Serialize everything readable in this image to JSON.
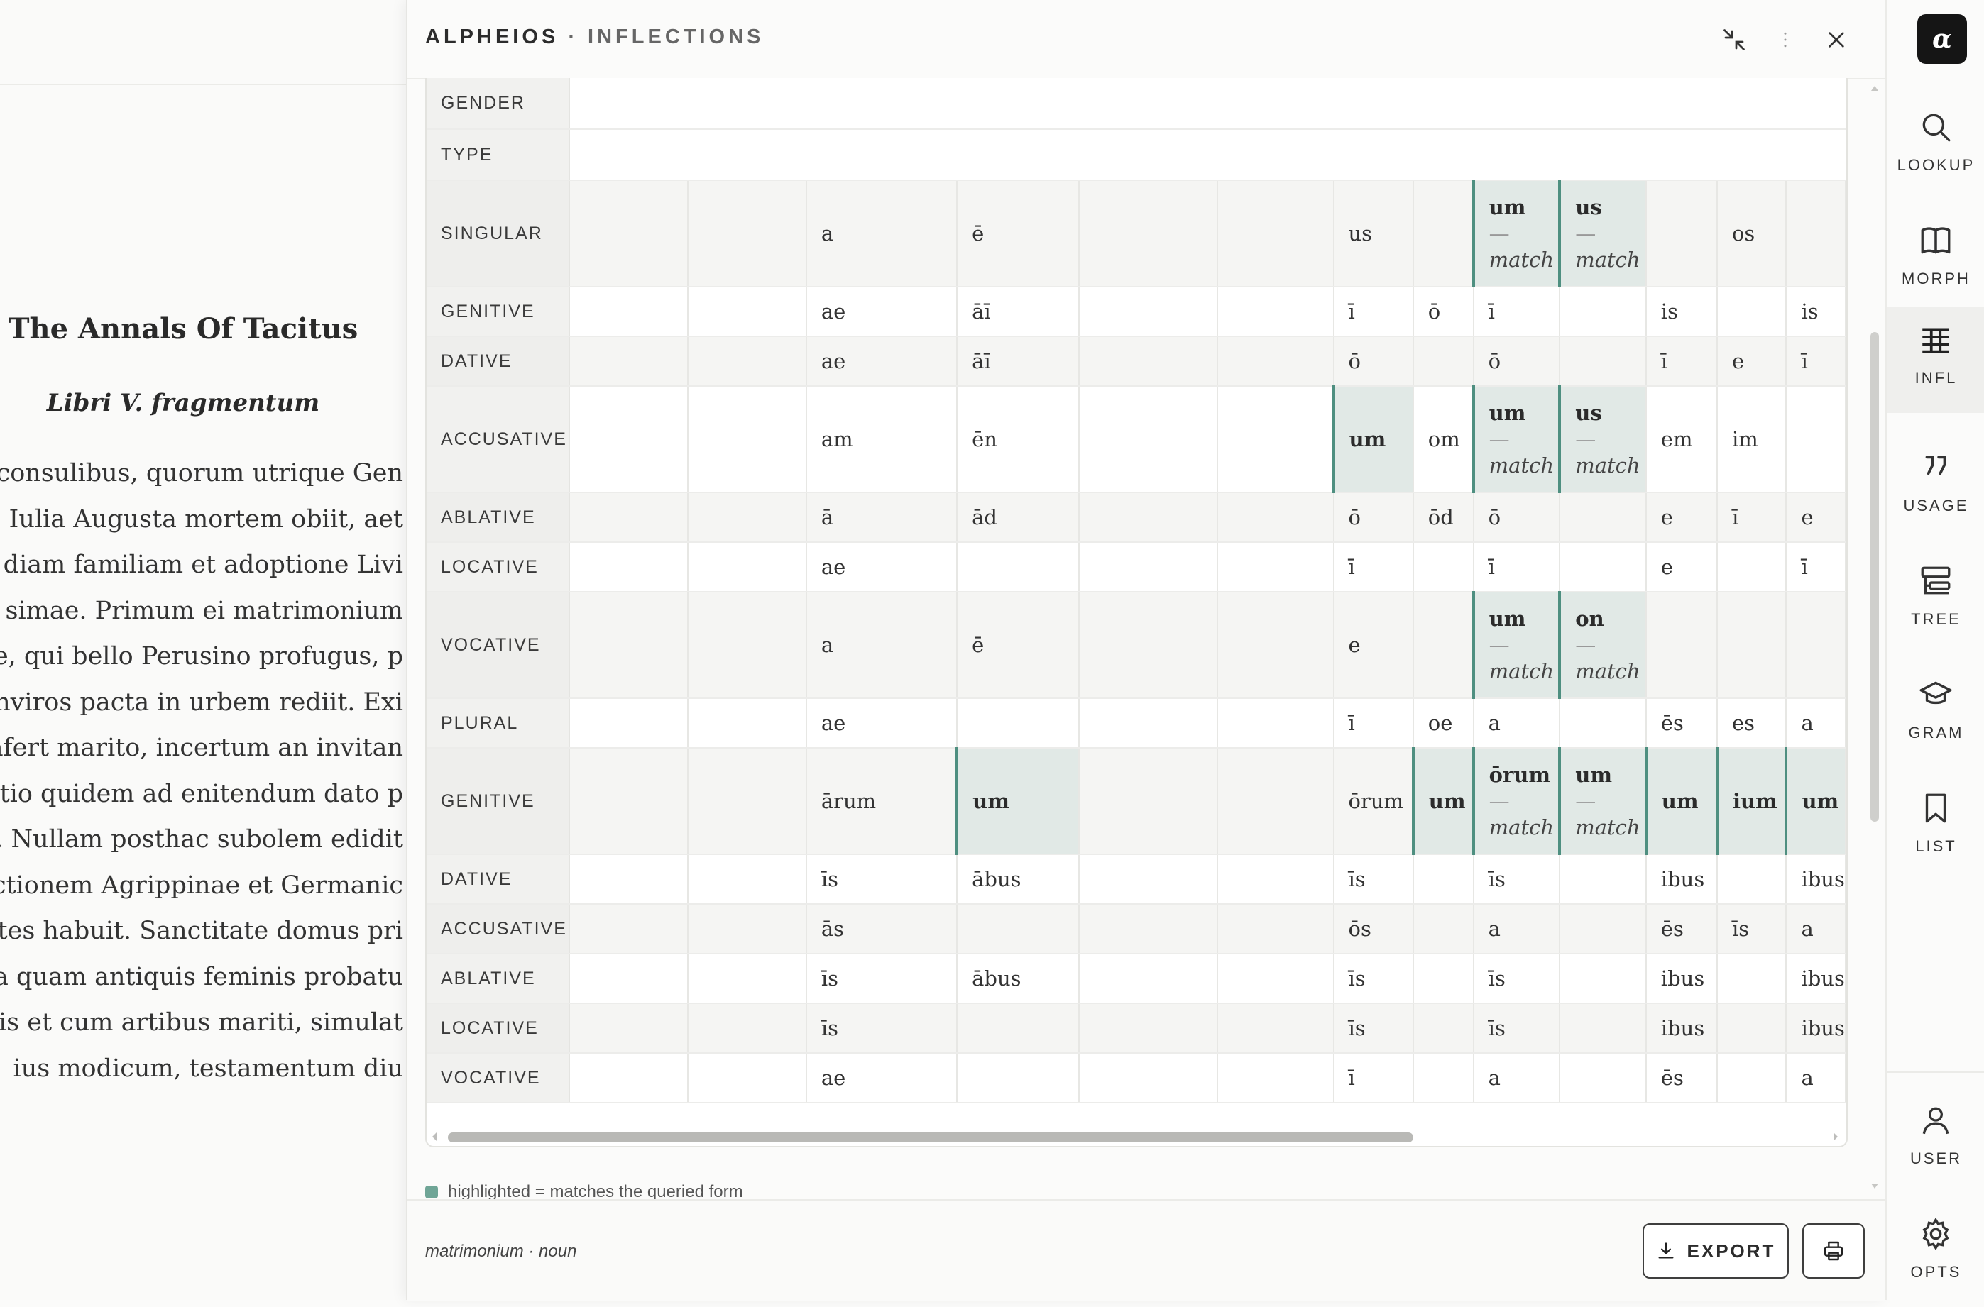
{
  "reader": {
    "title": "The Annals Of Tacitus",
    "subtitle": "Libri V. fragmentum",
    "lines": [
      "consulibus, quorum utrique Gen",
      ", Iulia Augusta mortem obiit, aet",
      "diam familiam et adoptione Livi",
      "simae. Primum ei matrimonium",
      "e, qui bello Perusino profugus, p",
      "nviros pacta in urbem rediit. Exi",
      "afert marito, incertum an invitan",
      "tio quidem ad enitendum dato p",
      ". Nullam posthac subolem edidit",
      "ctionem Agrippinae et Germanic",
      "otes habuit. Sanctitate domus pri",
      "a quam antiquis feminis probatu",
      "is et cum artibus mariti, simulat",
      "ius modicum, testamentum diu"
    ]
  },
  "panel": {
    "title_app": "ALPHEIOS",
    "title_sep": "·",
    "title_section": "INFLECTIONS",
    "buttons": {
      "collapse": "collapse-icon",
      "more": "more-vertical-icon",
      "close": "close-icon"
    }
  },
  "table": {
    "header_rows": [
      "GENDER",
      "TYPE"
    ],
    "match_label": "match",
    "rows": [
      {
        "label": "SINGULAR",
        "tall": true,
        "cells": [
          "",
          "",
          "a",
          "ē",
          "",
          "",
          "us",
          "",
          {
            "v": "um",
            "match": true
          },
          {
            "v": "us",
            "match": true
          },
          "",
          "os",
          ""
        ]
      },
      {
        "label": "GENITIVE",
        "cells": [
          "",
          "",
          "ae",
          "āī",
          "",
          "",
          "ī",
          "ō",
          "ī",
          "",
          "is",
          "",
          "is"
        ]
      },
      {
        "label": "DATIVE",
        "cells": [
          "",
          "",
          "ae",
          "āī",
          "",
          "",
          "ō",
          "",
          "ō",
          "",
          "ī",
          "e",
          "ī"
        ]
      },
      {
        "label": "ACCUSATIVE",
        "tall": true,
        "cells": [
          "",
          "",
          "am",
          "ēn",
          "",
          "",
          {
            "v": "um",
            "hl": true
          },
          "om",
          {
            "v": "um",
            "match": true
          },
          {
            "v": "us",
            "match": true
          },
          "em",
          "im",
          ""
        ]
      },
      {
        "label": "ABLATIVE",
        "cells": [
          "",
          "",
          "ā",
          "ād",
          "",
          "",
          "ō",
          "ōd",
          "ō",
          "",
          "e",
          "ī",
          "e"
        ]
      },
      {
        "label": "LOCATIVE",
        "cells": [
          "",
          "",
          "ae",
          "",
          "",
          "",
          "ī",
          "",
          "ī",
          "",
          "e",
          "",
          "ī"
        ]
      },
      {
        "label": "VOCATIVE",
        "tall": true,
        "cells": [
          "",
          "",
          "a",
          "ē",
          "",
          "",
          "e",
          "",
          {
            "v": "um",
            "match": true
          },
          {
            "v": "on",
            "match": true
          },
          "",
          "",
          ""
        ]
      },
      {
        "label": "PLURAL",
        "cells": [
          "",
          "",
          "ae",
          "",
          "",
          "",
          "ī",
          "oe",
          "a",
          "",
          "ēs",
          "es",
          "a"
        ]
      },
      {
        "label": "GENITIVE",
        "tall": true,
        "cells": [
          "",
          "",
          "ārum",
          {
            "v": "um",
            "hl": true
          },
          "",
          "",
          "ōrum",
          {
            "v": "um",
            "hl": true
          },
          {
            "v": "ōrum",
            "match": true
          },
          {
            "v": "um",
            "match": true
          },
          {
            "v": "um",
            "hl": true
          },
          {
            "v": "ium",
            "hl": true
          },
          {
            "v": "um",
            "hl": true
          }
        ]
      },
      {
        "label": "DATIVE",
        "cells": [
          "",
          "",
          "īs",
          "ābus",
          "",
          "",
          "īs",
          "",
          "īs",
          "",
          "ibus",
          "",
          "ibus"
        ]
      },
      {
        "label": "ACCUSATIVE",
        "cells": [
          "",
          "",
          "ās",
          "",
          "",
          "",
          "ōs",
          "",
          "a",
          "",
          "ēs",
          "īs",
          "a"
        ]
      },
      {
        "label": "ABLATIVE",
        "cells": [
          "",
          "",
          "īs",
          "ābus",
          "",
          "",
          "īs",
          "",
          "īs",
          "",
          "ibus",
          "",
          "ibus"
        ]
      },
      {
        "label": "LOCATIVE",
        "cells": [
          "",
          "",
          "īs",
          "",
          "",
          "",
          "īs",
          "",
          "īs",
          "",
          "ibus",
          "",
          "ibus"
        ]
      },
      {
        "label": "VOCATIVE",
        "cells": [
          "",
          "",
          "ae",
          "",
          "",
          "",
          "ī",
          "",
          "a",
          "",
          "ēs",
          "",
          "a"
        ]
      }
    ]
  },
  "legend": {
    "text": "highlighted = matches the queried form",
    "color": "#6fa596"
  },
  "footer": {
    "lemma": "matrimonium · noun",
    "export_label": "EXPORT",
    "export_icon": "download-icon",
    "print_icon": "printer-icon"
  },
  "rail": {
    "logo": "α",
    "items": [
      {
        "label": "LOOKUP",
        "icon": "search-icon"
      },
      {
        "label": "MORPH",
        "icon": "book-icon"
      },
      {
        "label": "INFL",
        "icon": "table-icon",
        "active": true
      },
      {
        "label": "USAGE",
        "icon": "quote-icon"
      },
      {
        "label": "TREE",
        "icon": "tree-icon"
      },
      {
        "label": "GRAM",
        "icon": "graduation-cap-icon"
      },
      {
        "label": "LIST",
        "icon": "bookmark-icon"
      }
    ],
    "bottom": [
      {
        "label": "USER",
        "icon": "user-icon"
      },
      {
        "label": "OPTS",
        "icon": "gear-icon"
      }
    ]
  },
  "colors": {
    "highlight_bg": "#e1e9e6",
    "highlight_border": "#4e8f80"
  }
}
